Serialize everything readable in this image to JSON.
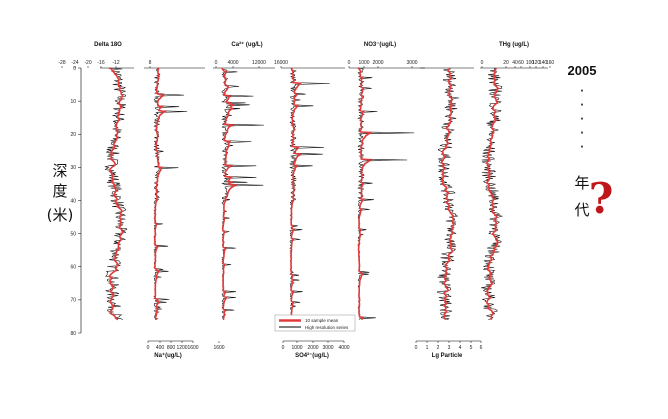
{
  "chart_data": {
    "type": "line",
    "depth_label": "深\n度\n(米)",
    "depth_axis": {
      "range": [
        0,
        80
      ],
      "ticks": [
        "0",
        "10",
        "20",
        "30",
        "40",
        "50",
        "60",
        "70",
        "80"
      ]
    },
    "right_annotation": {
      "year": "2005",
      "dots": "· · · · ·",
      "text_chars": [
        "年",
        "代"
      ],
      "question": "?"
    },
    "legend": {
      "entries": [
        "10 sample mean",
        "High resolution series"
      ],
      "colors": [
        "#e23a3a",
        "#000000"
      ]
    },
    "panels": [
      {
        "id": "delta18o",
        "top_label": "Delta 18O",
        "top_ticks": [
          "-28",
          "-24",
          "-20",
          "-16",
          "-12"
        ],
        "bottom_label": "",
        "bottom_ticks": []
      },
      {
        "id": "na",
        "top_label": "",
        "top_ticks": [
          "8"
        ],
        "bottom_label": "Na⁺(ug/L)",
        "bottom_ticks": [
          "0",
          "400",
          "800",
          "1200",
          "1600"
        ]
      },
      {
        "id": "ca",
        "top_label": "Ca²⁺ (ug/L)",
        "top_ticks": [
          "0",
          "4000",
          "12000"
        ],
        "bottom_label": "",
        "bottom_ticks": [
          "1600"
        ]
      },
      {
        "id": "so4",
        "top_label": "",
        "top_ticks": [
          "16000"
        ],
        "bottom_label": "SO4²⁻(ug/L)",
        "bottom_ticks": [
          "0",
          "1000",
          "2000",
          "3000",
          "4000"
        ]
      },
      {
        "id": "no3",
        "top_label": "NO3⁻(ug/L)",
        "top_ticks": [
          "0",
          "1000",
          "2000",
          "3000"
        ],
        "bottom_label": "",
        "bottom_ticks": []
      },
      {
        "id": "particle",
        "top_label": "",
        "top_ticks": [],
        "bottom_label": "Lg Particle",
        "bottom_ticks": [
          "0",
          "1",
          "2",
          "3",
          "4",
          "5",
          "6"
        ]
      },
      {
        "id": "thg",
        "top_label": "THg (ug/L)",
        "top_ticks": [
          "0",
          "20",
          "40",
          "60",
          "100",
          "120",
          "140",
          "160"
        ],
        "bottom_label": "",
        "bottom_ticks": []
      }
    ]
  }
}
